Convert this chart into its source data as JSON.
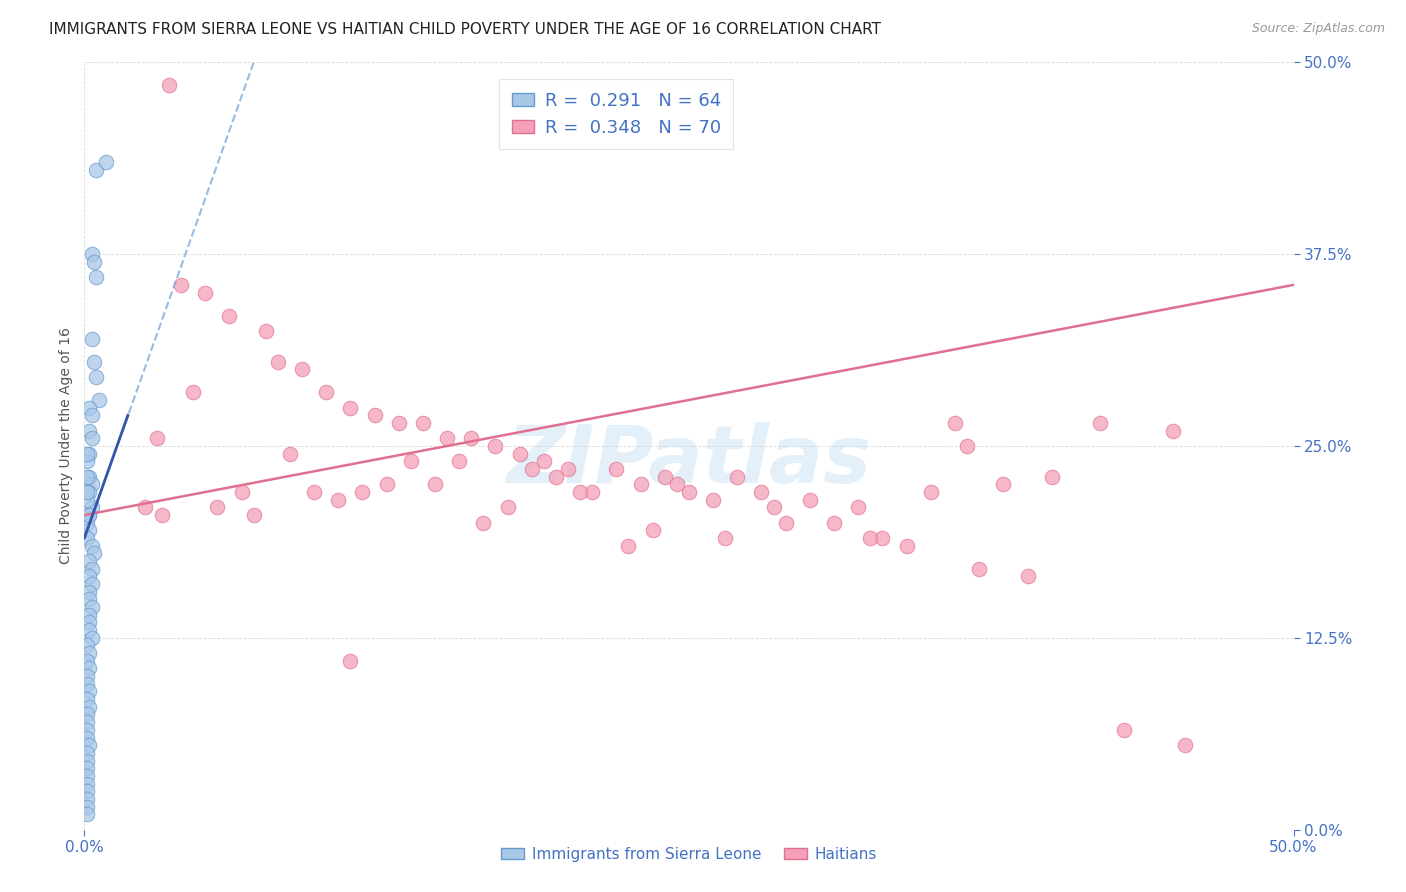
{
  "title": "IMMIGRANTS FROM SIERRA LEONE VS HAITIAN CHILD POVERTY UNDER THE AGE OF 16 CORRELATION CHART",
  "source": "Source: ZipAtlas.com",
  "ylabel": "Child Poverty Under the Age of 16",
  "ytick_values": [
    0.0,
    12.5,
    25.0,
    37.5,
    50.0
  ],
  "xlim": [
    0.0,
    50.0
  ],
  "ylim": [
    0.0,
    50.0
  ],
  "watermark": "ZIPatlas",
  "title_color": "#222222",
  "title_fontsize": 11,
  "axis_label_color": "#4472c4",
  "scatter_blue_color": "#a8c8e8",
  "scatter_blue_edge": "#6699cc",
  "scatter_pink_color": "#f4a0b8",
  "scatter_pink_edge": "#e07090",
  "line_blue_dashed_color": "#7aabe0",
  "line_blue_solid_color": "#3355aa",
  "line_pink_color": "#e07090",
  "grid_color": "#cccccc",
  "background_color": "#ffffff",
  "blue_R": 0.291,
  "blue_N": 64,
  "pink_R": 0.348,
  "pink_N": 70,
  "blue_scatter_x": [
    0.5,
    0.9,
    0.3,
    0.4,
    0.5,
    0.3,
    0.4,
    0.5,
    0.6,
    0.2,
    0.3,
    0.2,
    0.3,
    0.2,
    0.1,
    0.2,
    0.3,
    0.2,
    0.3,
    0.2,
    0.1,
    0.2,
    0.1,
    0.3,
    0.4,
    0.2,
    0.3,
    0.2,
    0.3,
    0.2,
    0.2,
    0.3,
    0.2,
    0.2,
    0.2,
    0.3,
    0.1,
    0.2,
    0.1,
    0.2,
    0.1,
    0.1,
    0.2,
    0.1,
    0.2,
    0.1,
    0.1,
    0.1,
    0.1,
    0.2,
    0.1,
    0.1,
    0.1,
    0.1,
    0.1,
    0.1,
    0.1,
    0.1,
    0.1,
    0.2,
    0.1,
    0.1,
    0.1,
    0.1
  ],
  "blue_scatter_y": [
    43.0,
    43.5,
    37.5,
    37.0,
    36.0,
    32.0,
    30.5,
    29.5,
    28.0,
    27.5,
    27.0,
    26.0,
    25.5,
    24.5,
    24.0,
    23.0,
    22.5,
    22.0,
    21.0,
    20.5,
    20.0,
    19.5,
    19.0,
    18.5,
    18.0,
    17.5,
    17.0,
    16.5,
    16.0,
    15.5,
    15.0,
    14.5,
    14.0,
    13.5,
    13.0,
    12.5,
    12.0,
    11.5,
    11.0,
    10.5,
    10.0,
    9.5,
    9.0,
    8.5,
    8.0,
    7.5,
    7.0,
    6.5,
    6.0,
    5.5,
    5.0,
    4.5,
    4.0,
    3.5,
    3.0,
    2.5,
    2.0,
    1.5,
    1.0,
    20.5,
    21.5,
    22.0,
    23.0,
    24.5
  ],
  "pink_scatter_x": [
    3.5,
    4.0,
    5.0,
    6.0,
    7.5,
    8.0,
    9.0,
    10.0,
    11.0,
    12.0,
    13.0,
    14.0,
    15.0,
    16.0,
    17.0,
    18.0,
    19.0,
    20.0,
    22.0,
    23.0,
    24.0,
    25.0,
    27.0,
    28.0,
    30.0,
    32.0,
    35.0,
    36.0,
    38.0,
    40.0,
    42.0,
    45.0,
    3.0,
    5.5,
    7.0,
    9.5,
    11.5,
    13.5,
    15.5,
    17.5,
    19.5,
    21.0,
    23.5,
    26.0,
    29.0,
    31.0,
    33.0,
    37.0,
    2.5,
    4.5,
    6.5,
    8.5,
    10.5,
    12.5,
    14.5,
    16.5,
    18.5,
    20.5,
    22.5,
    24.5,
    26.5,
    28.5,
    32.5,
    34.0,
    36.5,
    39.0,
    43.0,
    11.0,
    3.2,
    45.5
  ],
  "pink_scatter_y": [
    48.5,
    35.5,
    35.0,
    33.5,
    32.5,
    30.5,
    30.0,
    28.5,
    27.5,
    27.0,
    26.5,
    26.5,
    25.5,
    25.5,
    25.0,
    24.5,
    24.0,
    23.5,
    23.5,
    22.5,
    23.0,
    22.0,
    23.0,
    22.0,
    21.5,
    21.0,
    22.0,
    26.5,
    22.5,
    23.0,
    26.5,
    26.0,
    25.5,
    21.0,
    20.5,
    22.0,
    22.0,
    24.0,
    24.0,
    21.0,
    23.0,
    22.0,
    19.5,
    21.5,
    20.0,
    20.0,
    19.0,
    17.0,
    21.0,
    28.5,
    22.0,
    24.5,
    21.5,
    22.5,
    22.5,
    20.0,
    23.5,
    22.0,
    18.5,
    22.5,
    19.0,
    21.0,
    19.0,
    18.5,
    25.0,
    16.5,
    6.5,
    11.0,
    20.5,
    5.5
  ],
  "blue_dashed_x0": 0.0,
  "blue_dashed_y0": 19.0,
  "blue_dashed_x1": 7.0,
  "blue_dashed_y1": 50.0,
  "blue_solid_x0": 0.0,
  "blue_solid_y0": 19.0,
  "blue_solid_x1": 1.8,
  "blue_solid_y1": 27.0,
  "pink_line_x0": 0.0,
  "pink_line_y0": 20.5,
  "pink_line_x1": 50.0,
  "pink_line_y1": 35.5
}
